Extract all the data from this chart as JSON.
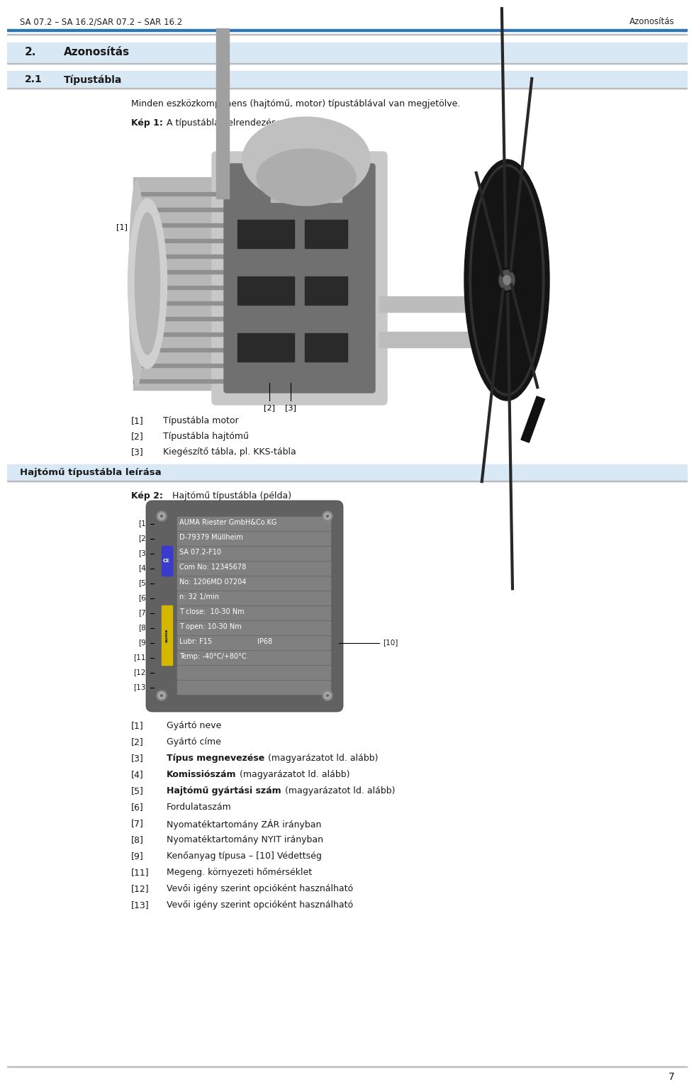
{
  "header_left": "SA 07.2 – SA 16.2/SAR 07.2 – SAR 16.2",
  "header_right": "Azonosítás",
  "header_line_color": "#2E75B6",
  "section_bg_color": "#D9E8F5",
  "section_num": "2.",
  "section_title": "Azonosítás",
  "subsection_num": "2.1",
  "subsection_title": "Típustábla",
  "intro_text": "Minden eszközkomponens (hajtómű, motor) típustáblával van megjetölve.",
  "fig1_caption_bold": "Kép 1:",
  "fig1_caption_rest": "   A típustáblák elrendezése",
  "fig1_items": [
    {
      "num": "[1]",
      "text": "Típustábla motor"
    },
    {
      "num": "[2]",
      "text": "Típustábla hajtómű"
    },
    {
      "num": "[3]",
      "text": "Kiegészítő tábla, pl. KKS-tábla"
    }
  ],
  "section2_title": "Hajtómű típustábla leírása",
  "fig2_caption_bold": "Kép 2:",
  "fig2_caption_rest": "    Hajtómű típustábla (példa)",
  "plate_bg": "#616161",
  "plate_row_bg": "#808080",
  "plate_row_dark_bg": "#707070",
  "plate_text_color": "#FFFFFF",
  "plate_rows": [
    {
      "num": "[1]",
      "text": "AUMA Riester GmbH&Co.KG",
      "has_ce": false,
      "has_auma": false
    },
    {
      "num": "[2]",
      "text": "D-79379 Müllheim",
      "has_ce": false,
      "has_auma": false
    },
    {
      "num": "[3]",
      "text": "SA 07.2-F10",
      "has_ce": true,
      "has_auma": false
    },
    {
      "num": "[4]",
      "text": "Com No: 12345678",
      "has_ce": true,
      "has_auma": false
    },
    {
      "num": "[5]",
      "text": "No: 1206MD 07204",
      "has_ce": false,
      "has_auma": false
    },
    {
      "num": "[6]",
      "text": "n: 32 1/min",
      "has_ce": false,
      "has_auma": false
    },
    {
      "num": "[7]",
      "text": "T close:  10-30 Nm",
      "has_ce": false,
      "has_auma": true
    },
    {
      "num": "[8]",
      "text": "T open: 10-30 Nm",
      "has_ce": false,
      "has_auma": true
    },
    {
      "num": "[9]",
      "text": "Lubr: F15",
      "has_ce": false,
      "has_auma": true,
      "ip68": "IP68"
    },
    {
      "num": "[11]",
      "text": "Temp: -40°C/+80°C",
      "has_ce": false,
      "has_auma": true
    },
    {
      "num": "[12]",
      "text": "",
      "has_ce": false,
      "has_auma": false
    },
    {
      "num": "[13]",
      "text": "",
      "has_ce": false,
      "has_auma": false
    }
  ],
  "plate_label10": "[10]",
  "desc_items": [
    {
      "num": "[1]",
      "plain": "Gyártó neve"
    },
    {
      "num": "[2]",
      "plain": "Gyártó címe"
    },
    {
      "num": "[3]",
      "bold": "Típus megnevezése",
      "rest": " (magyarázatot ld. alább)"
    },
    {
      "num": "[4]",
      "bold": "Komissiószám",
      "rest": " (magyarázatot ld. alább)"
    },
    {
      "num": "[5]",
      "bold": "Hajtómű gyártási szám",
      "rest": " (magyarázatot ld. alább)"
    },
    {
      "num": "[6]",
      "plain": "Fordulataszám"
    },
    {
      "num": "[7]",
      "plain": "Nyomatéktartomány ZÁR irányban"
    },
    {
      "num": "[8]",
      "plain": "Nyomatéktartomány NYIT irányban"
    },
    {
      "num": "[9]",
      "plain": "Kenőanyag típusa – [10] Védettség"
    },
    {
      "num": "[11]",
      "plain": "Megeng. környezeti hőmérséklet"
    },
    {
      "num": "[12]",
      "plain": "Vevői igény szerint opcióként használható"
    },
    {
      "num": "[13]",
      "plain": "Vevői igény szerint opcióként használható"
    }
  ],
  "page_num": "7",
  "bg_color": "#FFFFFF",
  "text_color": "#000000"
}
